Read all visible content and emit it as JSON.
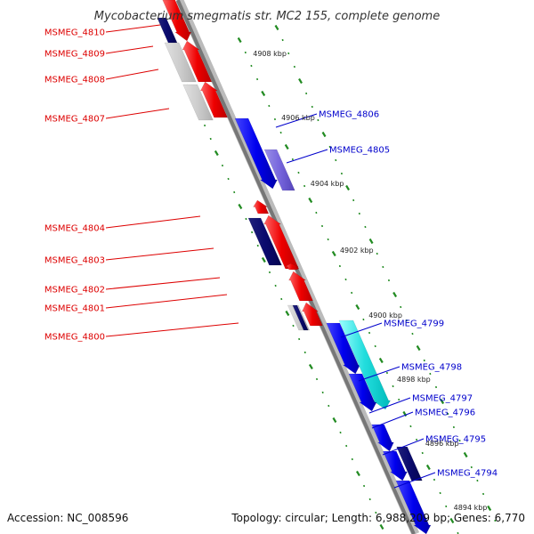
{
  "title": "Mycobacterium smegmatis str. MC2 155, complete genome",
  "accession": "Accession: NC_008596",
  "summary": "Topology: circular; Length: 6,988,209 bp; Genes: 6,770",
  "colors": {
    "label_left": "#dd0000",
    "label_right": "#0000cc",
    "tick": "#228b22",
    "backbone_dark": "#777777",
    "backbone_light": "#bbbbbb"
  },
  "ticks": [
    {
      "kbp": 4908,
      "label": "4908 kbp"
    },
    {
      "kbp": 4906,
      "label": "4906 kbp"
    },
    {
      "kbp": 4904,
      "label": "4904 kbp"
    },
    {
      "kbp": 4902,
      "label": "4902 kbp"
    },
    {
      "kbp": 4900,
      "label": "4900 kbp"
    },
    {
      "kbp": 4898,
      "label": "4898 kbp"
    },
    {
      "kbp": 4896,
      "label": "4896 kbp"
    },
    {
      "kbp": 4894,
      "label": "4894 kbp"
    }
  ],
  "genes_left": [
    {
      "name": "MSMEG_4810"
    },
    {
      "name": "MSMEG_4809"
    },
    {
      "name": "MSMEG_4808"
    },
    {
      "name": "MSMEG_4807"
    },
    {
      "name": "MSMEG_4804"
    },
    {
      "name": "MSMEG_4803"
    },
    {
      "name": "MSMEG_4802"
    },
    {
      "name": "MSMEG_4801"
    },
    {
      "name": "MSMEG_4800"
    }
  ],
  "genes_right": [
    {
      "name": "MSMEG_4806"
    },
    {
      "name": "MSMEG_4805"
    },
    {
      "name": "MSMEG_4799"
    },
    {
      "name": "MSMEG_4798"
    },
    {
      "name": "MSMEG_4797"
    },
    {
      "name": "MSMEG_4796"
    },
    {
      "name": "MSMEG_4795"
    },
    {
      "name": "MSMEG_4794"
    }
  ]
}
